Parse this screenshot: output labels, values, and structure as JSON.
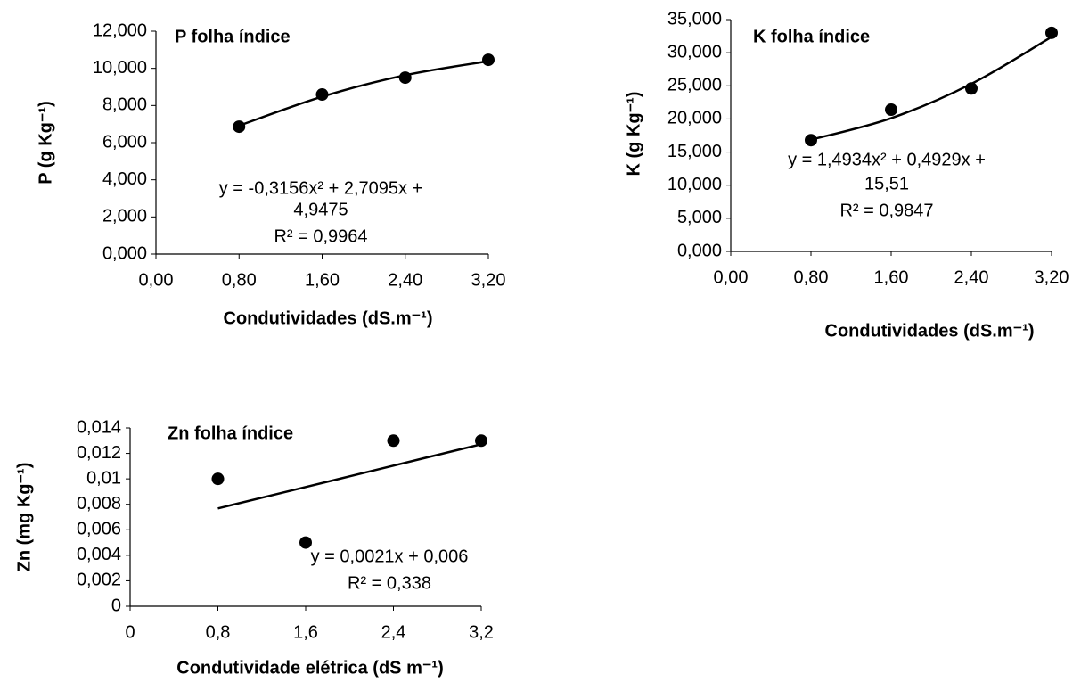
{
  "chart_data": [
    {
      "type": "scatter",
      "title": "P folha índice",
      "x_label": "Condutividades (dS.m⁻¹)",
      "y_label": "P (g Kg⁻¹)",
      "x": [
        0.8,
        1.6,
        2.4,
        3.2
      ],
      "values": [
        6.86,
        8.59,
        9.5,
        10.46
      ],
      "color": "#000000",
      "trendline": {
        "values": [
          6.913,
          8.475,
          9.632,
          10.386
        ]
      },
      "annotations": [
        "y = -0,3156x² + 2,7095x +",
        "4,9475",
        "R² = 0,9964"
      ],
      "xlim": [
        0,
        3.2
      ],
      "ylim": [
        0,
        12
      ],
      "xticks": [
        {
          "value": 0,
          "label": "0,00"
        },
        {
          "value": 0.8,
          "label": "0,80"
        },
        {
          "value": 1.6,
          "label": "1,60"
        },
        {
          "value": 2.4,
          "label": "2,40"
        },
        {
          "value": 3.2,
          "label": "3,20"
        }
      ],
      "yticks": [
        {
          "value": 0,
          "label": "0,000"
        },
        {
          "value": 2,
          "label": "2,000"
        },
        {
          "value": 4,
          "label": "4,000"
        },
        {
          "value": 6,
          "label": "6,000"
        },
        {
          "value": 8,
          "label": "8,000"
        },
        {
          "value": 10,
          "label": "10,000"
        },
        {
          "value": 12,
          "label": "12,000"
        }
      ],
      "grid": false
    },
    {
      "type": "scatter",
      "title": "K folha índice",
      "x_label": "Condutividades (dS.m⁻¹)",
      "y_label": "K (g Kg⁻¹)",
      "x": [
        0.8,
        1.6,
        2.4,
        3.2
      ],
      "values": [
        16.8,
        21.4,
        24.6,
        33
      ],
      "color": "#000000",
      "trendline": {
        "values": [
          16.86,
          20.12,
          25.3,
          32.38
        ]
      },
      "annotations": [
        "y = 1,4934x² + 0,4929x +",
        "15,51",
        "R² = 0,9847"
      ],
      "xlim": [
        0,
        3.2
      ],
      "ylim": [
        0,
        35
      ],
      "xticks": [
        {
          "value": 0,
          "label": "0,00"
        },
        {
          "value": 0.8,
          "label": "0,80"
        },
        {
          "value": 1.6,
          "label": "1,60"
        },
        {
          "value": 2.4,
          "label": "2,40"
        },
        {
          "value": 3.2,
          "label": "3,20"
        }
      ],
      "yticks": [
        {
          "value": 0,
          "label": "0,000"
        },
        {
          "value": 5,
          "label": "5,000"
        },
        {
          "value": 10,
          "label": "10,000"
        },
        {
          "value": 15,
          "label": "15,000"
        },
        {
          "value": 20,
          "label": "20,000"
        },
        {
          "value": 25,
          "label": "25,000"
        },
        {
          "value": 30,
          "label": "30,000"
        },
        {
          "value": 35,
          "label": "35,000"
        }
      ],
      "grid": false
    },
    {
      "type": "scatter",
      "title": "Zn folha índice",
      "x_label": "Condutividade elétrica (dS m⁻¹)",
      "y_label": "Zn  (mg Kg⁻¹)",
      "x": [
        0.8,
        1.6,
        2.4,
        3.2
      ],
      "values": [
        0.01,
        0.005,
        0.013,
        0.013
      ],
      "color": "#000000",
      "trendline": {
        "values": [
          0.00768,
          0.00936,
          0.01104,
          0.01272
        ]
      },
      "annotations": [
        "y = 0,0021x + 0,006",
        "R² = 0,338"
      ],
      "xlim": [
        0,
        3.2
      ],
      "ylim": [
        0,
        0.014
      ],
      "xticks": [
        0,
        {
          "value": 0.8,
          "label": "0,8"
        },
        {
          "value": 1.6,
          "label": "1,6"
        },
        {
          "value": 2.4,
          "label": "2,4"
        },
        {
          "value": 3.2,
          "label": "3,2"
        }
      ],
      "yticks": [
        0,
        {
          "value": 0.002,
          "label": "0,002"
        },
        {
          "value": 0.004,
          "label": "0,004"
        },
        {
          "value": 0.006,
          "label": "0,006"
        },
        {
          "value": 0.008,
          "label": "0,008"
        },
        {
          "value": 0.01,
          "label": "0,01"
        },
        {
          "value": 0.012,
          "label": "0,012"
        },
        {
          "value": 0.014,
          "label": "0,014"
        }
      ],
      "grid": false
    }
  ]
}
